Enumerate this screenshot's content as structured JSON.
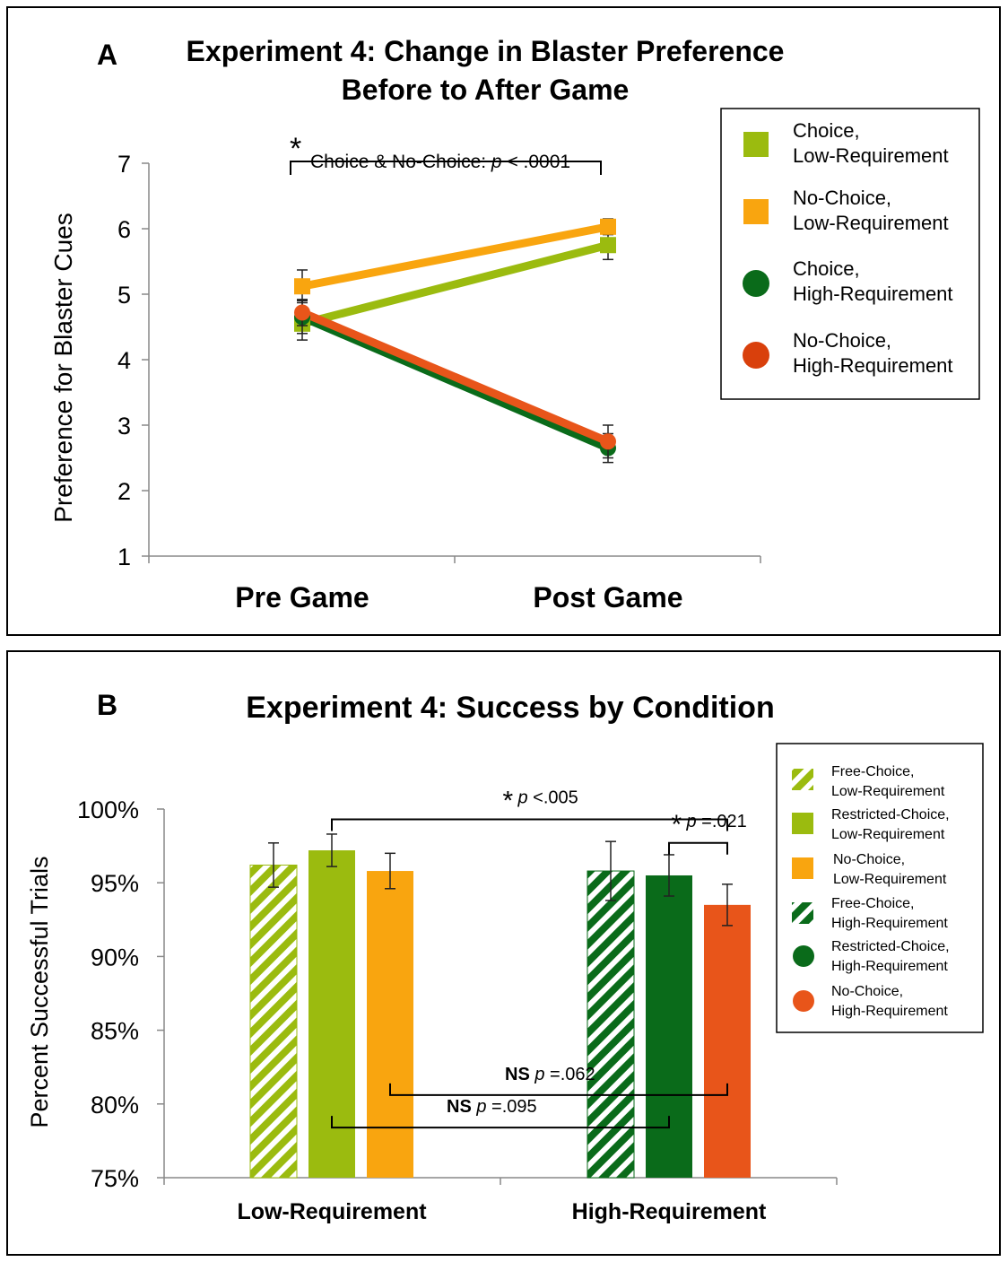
{
  "colors": {
    "choice_low": "#9bbb0f",
    "nochoice_low": "#f9a50f",
    "choice_high": "#0a6b1a",
    "nochoice_high": "#e8551a",
    "frame": "#000000"
  },
  "chart_data": [
    {
      "type": "line",
      "panel_label": "A",
      "title_line1": "Experiment 4: Change in Blaster Preference",
      "title_line2": "Before to After Game",
      "ylabel": "Preference for Blaster Cues",
      "ylim": [
        1,
        7
      ],
      "yticks": [
        "1",
        "2",
        "3",
        "4",
        "5",
        "6",
        "7"
      ],
      "categories": [
        "Pre Game",
        "Post Game"
      ],
      "series": [
        {
          "name_line1": "Choice,",
          "name_line2": "Low-Requirement",
          "marker": "square",
          "color_key": "choice_low",
          "values": [
            4.55,
            5.75
          ],
          "errors": [
            0.25,
            0.22
          ]
        },
        {
          "name_line1": "No-Choice,",
          "name_line2": "Low-Requirement",
          "marker": "square",
          "color_key": "nochoice_low",
          "values": [
            5.12,
            6.03
          ],
          "errors": [
            0.25,
            0.12
          ]
        },
        {
          "name_line1": "Choice,",
          "name_line2": "High-Requirement",
          "marker": "circle",
          "color_key": "choice_high",
          "values": [
            4.65,
            2.65
          ],
          "errors": [
            0.25,
            0.22
          ]
        },
        {
          "name_line1": "No-Choice,",
          "name_line2": "High-Requirement",
          "marker": "circle",
          "color_key": "nochoice_high",
          "values": [
            4.72,
            2.75
          ],
          "errors": [
            0.2,
            0.25
          ]
        }
      ],
      "annotation": {
        "star": "*",
        "text": "Choice & No-Choice: ",
        "p": "p",
        "rest": " < .0001"
      }
    },
    {
      "type": "bar",
      "panel_label": "B",
      "title": "Experiment 4: Success by Condition",
      "ylabel": "Percent Successful Trials",
      "ylim": [
        75,
        100
      ],
      "yticks": [
        "75%",
        "80%",
        "85%",
        "90%",
        "95%",
        "100%"
      ],
      "categories": [
        "Low-Requirement",
        "High-Requirement"
      ],
      "groups": [
        {
          "category": "Low-Requirement",
          "bars": [
            {
              "name": "Free-Choice, Low-Requirement",
              "value": 96.2,
              "error": 1.5,
              "color_key": "choice_low",
              "hatched": true
            },
            {
              "name": "Restricted-Choice, Low-Requirement",
              "value": 97.2,
              "error": 1.1,
              "color_key": "choice_low",
              "hatched": false
            },
            {
              "name": "No-Choice, Low-Requirement",
              "value": 95.8,
              "error": 1.2,
              "color_key": "nochoice_low",
              "hatched": false
            }
          ]
        },
        {
          "category": "High-Requirement",
          "bars": [
            {
              "name": "Free-Choice, High-Requirement",
              "value": 95.8,
              "error": 2.0,
              "color_key": "choice_high",
              "hatched": true
            },
            {
              "name": "Restricted-Choice, High-Requirement",
              "value": 95.5,
              "error": 1.4,
              "color_key": "choice_high",
              "hatched": false
            },
            {
              "name": "No-Choice, High-Requirement",
              "value": 93.5,
              "error": 1.4,
              "color_key": "nochoice_high",
              "hatched": false
            }
          ]
        }
      ],
      "legend": [
        {
          "line1": "Free-Choice,",
          "line2": "Low-Requirement",
          "marker": "hatched-square",
          "color_key": "choice_low"
        },
        {
          "line1": "Restricted-Choice,",
          "line2": "Low-Requirement",
          "marker": "square",
          "color_key": "choice_low"
        },
        {
          "line1": "No-Choice,",
          "line2": "Low-Requirement",
          "marker": "square",
          "color_key": "nochoice_low"
        },
        {
          "line1": "Free-Choice,",
          "line2": "High-Requirement",
          "marker": "hatched-square",
          "color_key": "choice_high"
        },
        {
          "line1": "Restricted-Choice,",
          "line2": "High-Requirement",
          "marker": "circle",
          "color_key": "choice_high"
        },
        {
          "line1": "No-Choice,",
          "line2": "High-Requirement",
          "marker": "circle",
          "color_key": "nochoice_high"
        }
      ],
      "annotations": [
        {
          "label": "*",
          "p": "p",
          "rest": " <.005",
          "from_bar": [
            0,
            1
          ],
          "to_bar": [
            1,
            2
          ],
          "level": 99.3
        },
        {
          "label": "*",
          "p": "p",
          "rest": " =.021",
          "from_bar": [
            1,
            1
          ],
          "to_bar": [
            1,
            2
          ],
          "level": 97.7
        },
        {
          "label": "NS",
          "p": "p",
          "rest": " =.062",
          "from_bar": [
            0,
            2
          ],
          "to_bar": [
            1,
            2
          ],
          "level": 80.6
        },
        {
          "label": "NS",
          "p": "p",
          "rest": " =.095",
          "from_bar": [
            0,
            1
          ],
          "to_bar": [
            1,
            1
          ],
          "level": 78.4
        }
      ]
    }
  ]
}
